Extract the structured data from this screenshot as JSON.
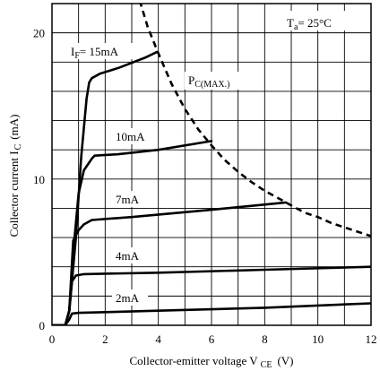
{
  "chart_data": {
    "type": "line",
    "title": "",
    "xlabel": "Collector-emitter voltage V CE  (V)",
    "ylabel": "Collector current I C  (mA)",
    "xlabel_parts": {
      "main": "Collector-emitter voltage V",
      "sub": "CE",
      "unit": "(V)"
    },
    "ylabel_parts": {
      "main": "Collector current I",
      "sub": "C",
      "unit": "(mA)"
    },
    "xlim": [
      0,
      12
    ],
    "ylim": [
      0,
      22
    ],
    "x_ticks": [
      0,
      2,
      4,
      6,
      8,
      10,
      12
    ],
    "x_tick_labels": [
      "0",
      "2",
      "4",
      "6",
      "8",
      "10",
      "12"
    ],
    "y_ticks": [
      0,
      10,
      20
    ],
    "y_tick_labels": [
      "0",
      "10",
      "20"
    ],
    "grid": true,
    "condition_label": {
      "main": "T",
      "sub": "a",
      "rest": "= 25°C"
    },
    "series": [
      {
        "name": "IF= 15mA",
        "label_parts": {
          "main": "I",
          "sub": "F",
          "rest": "= 15mA"
        },
        "x": [
          0,
          0.5,
          0.65,
          0.9,
          1.1,
          1.3,
          1.4,
          1.5,
          1.8,
          2.5,
          3.5,
          3.95
        ],
        "y": [
          0,
          0,
          1.0,
          6.0,
          11.5,
          15.5,
          16.6,
          16.9,
          17.2,
          17.6,
          18.3,
          18.7
        ]
      },
      {
        "name": "10mA",
        "x": [
          0,
          0.5,
          0.65,
          0.85,
          1.0,
          1.2,
          1.5,
          1.6,
          2.5,
          4,
          6
        ],
        "y": [
          0,
          0,
          1.0,
          6.0,
          9.0,
          10.6,
          11.4,
          11.6,
          11.7,
          12.0,
          12.6
        ]
      },
      {
        "name": "7mA",
        "x": [
          0,
          0.5,
          0.65,
          0.8,
          1.0,
          1.2,
          1.5,
          3,
          6,
          8.8
        ],
        "y": [
          0,
          0,
          1.0,
          5.8,
          6.5,
          6.9,
          7.2,
          7.4,
          7.9,
          8.4
        ]
      },
      {
        "name": "4mA",
        "x": [
          0,
          0.5,
          0.65,
          0.75,
          0.9,
          1.2,
          4,
          8,
          12
        ],
        "y": [
          0,
          0,
          1.0,
          3.0,
          3.4,
          3.5,
          3.6,
          3.8,
          4.0
        ]
      },
      {
        "name": "2mA",
        "x": [
          0,
          0.5,
          0.65,
          0.75,
          1.0,
          4,
          8,
          12
        ],
        "y": [
          0,
          0,
          0.4,
          0.8,
          0.85,
          1.0,
          1.2,
          1.5
        ]
      }
    ],
    "max_power_curve": {
      "name": "PC(MAX.)",
      "label_parts": {
        "main": "P",
        "sub": "C(MAX.)"
      },
      "style": "dashed",
      "x": [
        3.3,
        3.6,
        4,
        4.5,
        5,
        5.5,
        6,
        6.5,
        7,
        7.5,
        8,
        8.5,
        9,
        9.5,
        10,
        10.5,
        11,
        11.5,
        12
      ],
      "y": [
        22.2,
        20.4,
        18.6,
        16.5,
        14.8,
        13.4,
        12.3,
        11.3,
        10.5,
        9.8,
        9.2,
        8.7,
        8.2,
        7.7,
        7.4,
        7.0,
        6.7,
        6.4,
        6.1
      ]
    }
  }
}
